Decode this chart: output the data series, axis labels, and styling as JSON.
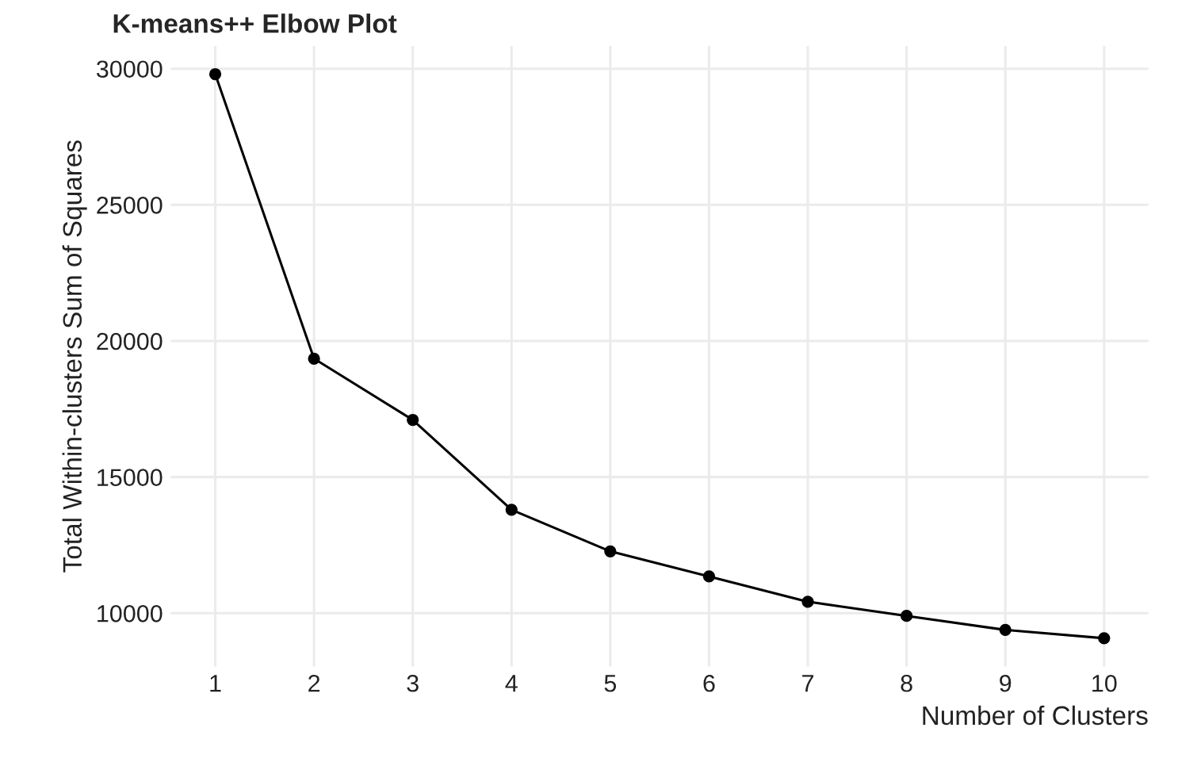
{
  "chart_data": {
    "type": "line",
    "title": "K-means++ Elbow Plot",
    "xlabel": "Number of Clusters",
    "ylabel": "Total Within-clusters Sum of Squares",
    "x": [
      1,
      2,
      3,
      4,
      5,
      6,
      7,
      8,
      9,
      10
    ],
    "series": [
      {
        "color": "#000000",
        "values": [
          29800,
          19350,
          17100,
          13800,
          12270,
          11350,
          10420,
          9900,
          9385,
          9080
        ]
      }
    ],
    "xlim": [
      0.55,
      10.45
    ],
    "xticks": [
      1,
      2,
      3,
      4,
      5,
      6,
      7,
      8,
      9,
      10
    ],
    "ylim": [
      8044,
      30836
    ],
    "yticks": [
      10000,
      15000,
      20000,
      25000,
      30000
    ],
    "grid": true,
    "marker": "circle",
    "line_style": "solid"
  }
}
